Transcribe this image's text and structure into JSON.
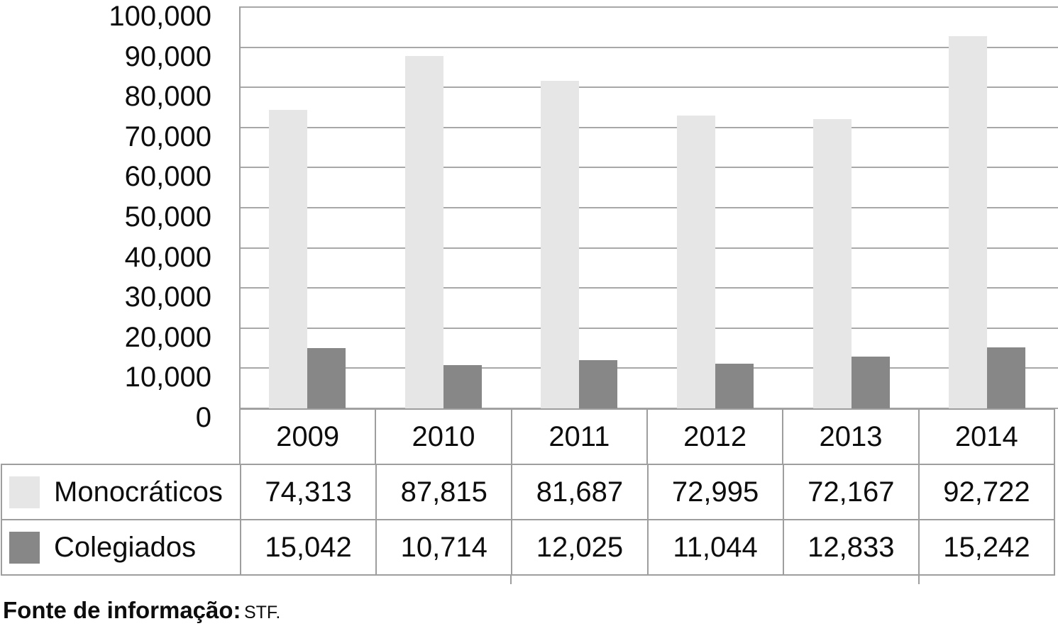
{
  "chart_data": {
    "type": "bar",
    "title": "",
    "categories": [
      "2009",
      "2010",
      "2011",
      "2012",
      "2013",
      "2014"
    ],
    "series": [
      {
        "name": "Monocráticos",
        "color": "#e6e6e6",
        "values": [
          74313,
          87815,
          81687,
          72995,
          72167,
          92722
        ]
      },
      {
        "name": "Colegiados",
        "color": "#878787",
        "values": [
          15042,
          10714,
          12025,
          11044,
          12833,
          15242
        ]
      }
    ],
    "xlabel": "",
    "ylabel": "",
    "ylim": [
      0,
      100000
    ],
    "ytick_step": 10000,
    "y_tick_labels": [
      "100,000",
      "90,000",
      "80,000",
      "70,000",
      "60,000",
      "50,000",
      "40,000",
      "30,000",
      "20,000",
      "10,000",
      "0"
    ],
    "grid": "horizontal",
    "legend_position": "table-left"
  },
  "table": {
    "header_row": [
      "2009",
      "2010",
      "2011",
      "2012",
      "2013",
      "2014"
    ],
    "rows": [
      {
        "label": "Monocráticos",
        "swatch_color": "#e6e6e6",
        "values": [
          "74,313",
          "87,815",
          "81,687",
          "72,995",
          "72,167",
          "92,722"
        ]
      },
      {
        "label": "Colegiados",
        "swatch_color": "#878787",
        "values": [
          "15,042",
          "10,714",
          "12,025",
          "11,044",
          "12,833",
          "15,242"
        ]
      }
    ]
  },
  "footer": {
    "label": "Fonte de informação:",
    "source": "STF."
  },
  "colors": {
    "bar_light": "#e6e6e6",
    "bar_dark": "#878787",
    "gridline": "#a8a8a8",
    "border": "#9e9e9e",
    "text": "#0d0d0d"
  }
}
